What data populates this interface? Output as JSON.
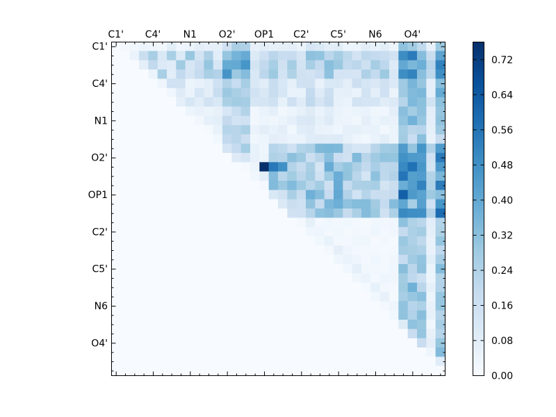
{
  "chart_data": {
    "type": "heatmap",
    "title": "",
    "xlabel": "",
    "ylabel": "",
    "n": 36,
    "atom_labels": [
      "C1'",
      "C4'",
      "N1",
      "O2'",
      "OP1",
      "C2'",
      "C5'",
      "N6",
      "O4'"
    ],
    "label_every": 4,
    "x_ticks_position": "top",
    "colormap": "Blues",
    "vmin": 0.0,
    "vmax": 0.76,
    "colorbar_ticks": [
      "0.00",
      "0.08",
      "0.16",
      "0.24",
      "0.32",
      "0.40",
      "0.48",
      "0.56",
      "0.64",
      "0.72"
    ],
    "max_value": 0.76,
    "max_cell": [
      13,
      16
    ]
  },
  "colors": {
    "low": "#f7fbff",
    "high": "#08306b"
  }
}
